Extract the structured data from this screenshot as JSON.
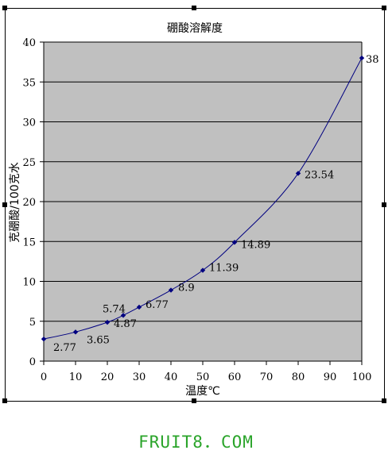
{
  "watermark": "FRUIT8．COM",
  "chart_data": {
    "type": "line",
    "title": "硼酸溶解度",
    "xlabel": "温度℃",
    "ylabel": "克硼酸/100克水",
    "xlim": [
      0,
      100
    ],
    "ylim": [
      0,
      40
    ],
    "x_ticks": [
      0,
      10,
      20,
      30,
      40,
      50,
      60,
      70,
      80,
      90,
      100
    ],
    "y_ticks": [
      0,
      5,
      10,
      15,
      20,
      25,
      30,
      35,
      40
    ],
    "grid": "horizontal",
    "legend": "none",
    "colors": {
      "plot_bg": "#c0c0c0",
      "line": "#000080",
      "marker": "#000080"
    },
    "series": [
      {
        "points": [
          {
            "x": 0,
            "y": 2.77,
            "label": "2.77"
          },
          {
            "x": 10,
            "y": 3.65,
            "label": "3.65"
          },
          {
            "x": 20,
            "y": 4.87,
            "label": "4.87"
          },
          {
            "x": 25,
            "y": 5.74,
            "label": "5.74"
          },
          {
            "x": 30,
            "y": 6.77,
            "label": "6.77"
          },
          {
            "x": 40,
            "y": 8.9,
            "label": "8.9"
          },
          {
            "x": 50,
            "y": 11.39,
            "label": "11.39"
          },
          {
            "x": 60,
            "y": 14.89,
            "label": "14.89"
          },
          {
            "x": 80,
            "y": 23.54,
            "label": "23.54"
          },
          {
            "x": 100,
            "y": 38,
            "label": "38"
          }
        ]
      }
    ]
  }
}
